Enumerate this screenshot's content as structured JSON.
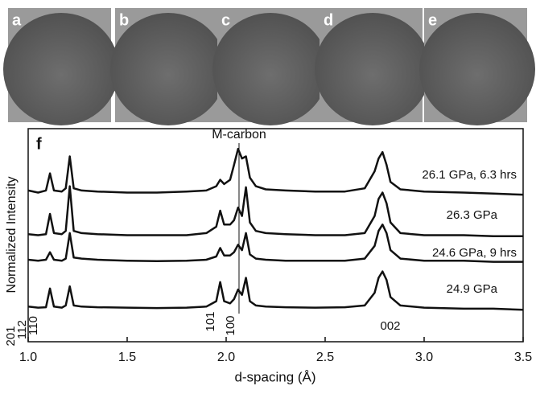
{
  "photos": [
    "a",
    "b",
    "c",
    "d",
    "e"
  ],
  "chart_data": {
    "type": "line",
    "panel_label": "f",
    "xlabel": "d-spacing (Å)",
    "ylabel": "Normalized Intensity",
    "xlim": [
      1.0,
      3.5
    ],
    "xticks": [
      {
        "value": 1.0,
        "label": "1.0"
      },
      1.5,
      {
        "value": 2.0,
        "label": "2.0"
      },
      2.5,
      {
        "value": 3.0,
        "label": "3.0"
      },
      3.5
    ],
    "ylim": [
      0,
      10
    ],
    "color": "#111111",
    "marker_line": {
      "label": "M-carbon",
      "x": 2.065
    },
    "peak_labels": [
      "201",
      "112",
      "110",
      "101",
      "100",
      "002"
    ],
    "x": [
      1.0,
      1.05,
      1.09,
      1.11,
      1.13,
      1.17,
      1.19,
      1.21,
      1.23,
      1.27,
      1.35,
      1.5,
      1.65,
      1.8,
      1.9,
      1.95,
      1.97,
      1.99,
      2.02,
      2.04,
      2.06,
      2.08,
      2.1,
      2.12,
      2.15,
      2.2,
      2.3,
      2.45,
      2.6,
      2.7,
      2.75,
      2.77,
      2.79,
      2.81,
      2.83,
      2.88,
      3.0,
      3.2,
      3.35,
      3.5
    ],
    "series": [
      {
        "name": "26.1 GPa, 6.3 hrs",
        "values": [
          7.1,
          7.0,
          7.1,
          7.9,
          7.1,
          7.05,
          7.2,
          8.7,
          7.2,
          7.1,
          7.05,
          7.0,
          7.0,
          7.05,
          7.1,
          7.3,
          7.6,
          7.4,
          7.6,
          8.3,
          9.05,
          8.6,
          8.7,
          7.7,
          7.3,
          7.15,
          7.1,
          7.05,
          7.05,
          7.2,
          8.0,
          8.6,
          8.9,
          8.3,
          7.5,
          7.15,
          7.05,
          7.0,
          6.95,
          6.9
        ]
      },
      {
        "name": "26.3 GPa",
        "values": [
          5.05,
          5.0,
          5.05,
          6.0,
          5.1,
          5.05,
          5.2,
          7.3,
          5.2,
          5.1,
          5.05,
          5.0,
          5.0,
          5.0,
          5.1,
          5.4,
          6.15,
          5.5,
          5.5,
          5.7,
          6.3,
          5.9,
          7.25,
          5.6,
          5.2,
          5.1,
          5.05,
          5.0,
          5.0,
          5.1,
          5.9,
          6.7,
          7.0,
          6.5,
          5.6,
          5.1,
          5.0,
          5.0,
          4.95,
          4.95
        ]
      },
      {
        "name": "24.6 GPa, 9 hrs",
        "values": [
          3.85,
          3.8,
          3.85,
          4.2,
          3.85,
          3.8,
          3.9,
          5.1,
          3.95,
          3.9,
          3.85,
          3.8,
          3.78,
          3.8,
          3.85,
          4.0,
          4.4,
          4.05,
          4.05,
          4.2,
          4.55,
          4.3,
          5.1,
          4.1,
          3.9,
          3.85,
          3.8,
          3.8,
          3.8,
          3.9,
          4.5,
          5.2,
          5.5,
          5.1,
          4.3,
          3.9,
          3.8,
          3.8,
          3.75,
          3.75
        ]
      },
      {
        "name": "24.9 GPa",
        "values": [
          1.65,
          1.6,
          1.62,
          2.5,
          1.65,
          1.6,
          1.7,
          2.6,
          1.7,
          1.65,
          1.62,
          1.6,
          1.58,
          1.6,
          1.65,
          1.9,
          2.8,
          1.9,
          1.8,
          2.0,
          2.45,
          2.2,
          3.0,
          1.9,
          1.7,
          1.65,
          1.62,
          1.6,
          1.62,
          1.7,
          2.3,
          3.0,
          3.3,
          2.9,
          2.1,
          1.7,
          1.6,
          1.55,
          1.55,
          1.5
        ]
      }
    ]
  }
}
